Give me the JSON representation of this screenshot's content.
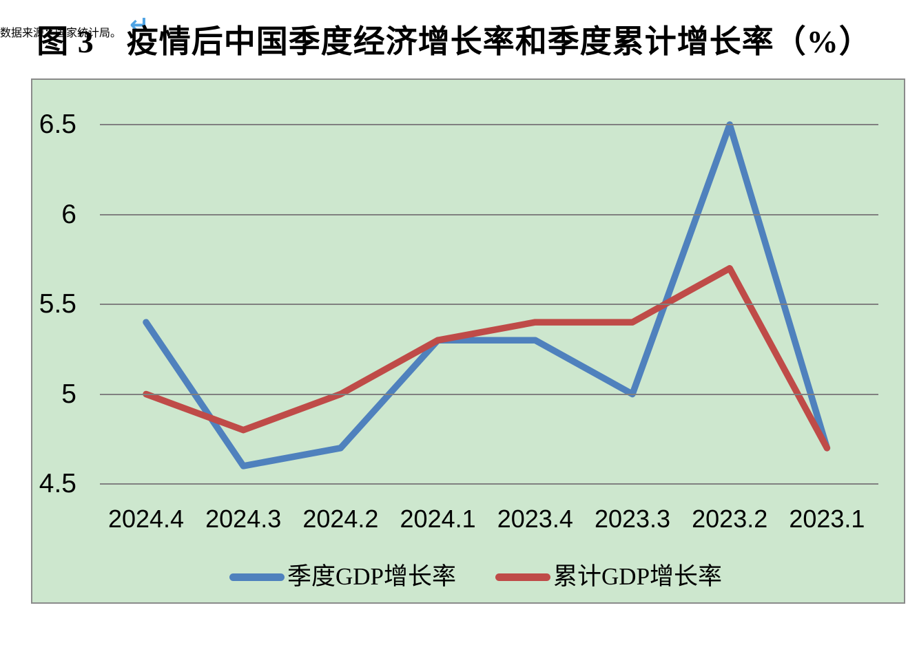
{
  "title": "图 3　疫情后中国季度经济增长率和季度累计增长率（%）",
  "source_note": "数据来源：国家统计局。",
  "return_mark": "↵",
  "colors": {
    "quarterly_line": "#4f81bd",
    "cumulative_line": "#bf4b48",
    "plot_background": "#cde7ce",
    "gridline": "#808080",
    "box_border": "#8a8a8a",
    "return_mark_blue": "#4fa3e3"
  },
  "chart_data": {
    "type": "line",
    "categories": [
      "2024.4",
      "2024.3",
      "2024.2",
      "2024.1",
      "2023.4",
      "2023.3",
      "2023.2",
      "2023.1"
    ],
    "series": [
      {
        "name": "季度GDP增长率",
        "color": "#4f81bd",
        "values": [
          5.4,
          4.6,
          4.7,
          5.3,
          5.3,
          5.0,
          6.5,
          4.7
        ]
      },
      {
        "name": "累计GDP增长率",
        "color": "#bf4b48",
        "values": [
          5.0,
          4.8,
          5.0,
          5.3,
          5.4,
          5.4,
          5.7,
          4.7
        ]
      }
    ],
    "y_ticks": [
      {
        "value": 4.5,
        "label": "4.5"
      },
      {
        "value": 5.0,
        "label": "5"
      },
      {
        "value": 5.5,
        "label": "5.5"
      },
      {
        "value": 6.0,
        "label": "6"
      },
      {
        "value": 6.5,
        "label": "6.5"
      }
    ],
    "ylim": [
      4.5,
      6.5
    ],
    "xlabel": "",
    "ylabel": "",
    "grid": true,
    "legend_position": "bottom"
  }
}
